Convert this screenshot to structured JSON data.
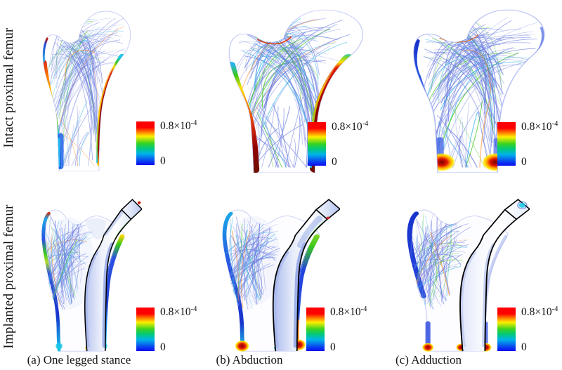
{
  "figure": {
    "rows": [
      {
        "label": "Intact proximal femur"
      },
      {
        "label": "Implanted proximal femur"
      }
    ],
    "columns": [
      {
        "caption": "(a) One legged stance"
      },
      {
        "caption": "(b) Abduction"
      },
      {
        "caption": "(c) Adduction"
      }
    ],
    "legend": {
      "max_base": "0.8×10",
      "max_exp": "-4",
      "min": "0"
    },
    "colors": {
      "scale": [
        "#fd0000",
        "#ff9100",
        "#ffee00",
        "#37d321",
        "#00b4e8",
        "#0a0af0"
      ],
      "streamline": "#6b7ce0",
      "stream_cyan": "#2bb3e8",
      "stream_green": "#39c818",
      "stream_warm": "#ff8822",
      "stress_high": "#8a0000",
      "stress_low": "#1733cc",
      "implant_outline": "#000000"
    }
  }
}
